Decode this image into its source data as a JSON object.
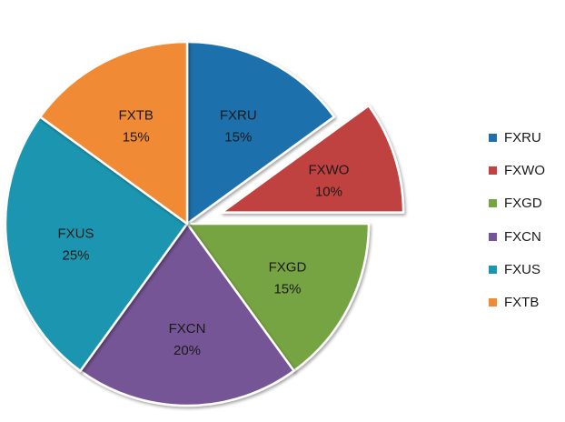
{
  "chart_data": {
    "type": "pie",
    "title": "",
    "legend_position": "right",
    "exploded_slice": "FXWO",
    "slices": [
      {
        "name": "FXRU",
        "value": 15,
        "label": "15%",
        "color": "#1f6fab"
      },
      {
        "name": "FXWO",
        "value": 10,
        "label": "10%",
        "color": "#c0433f"
      },
      {
        "name": "FXGD",
        "value": 15,
        "label": "15%",
        "color": "#77a443"
      },
      {
        "name": "FXCN",
        "value": 20,
        "label": "20%",
        "color": "#765596"
      },
      {
        "name": "FXUS",
        "value": 25,
        "label": "25%",
        "color": "#1a96b0"
      },
      {
        "name": "FXTB",
        "value": 15,
        "label": "15%",
        "color": "#f18a34"
      }
    ]
  }
}
